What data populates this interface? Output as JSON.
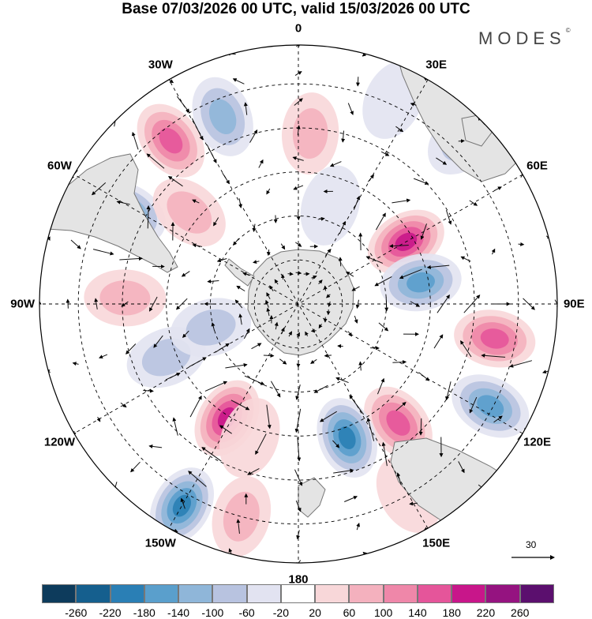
{
  "title": "Base 07/03/2026 00 UTC, valid 15/03/2026 00 UTC",
  "brand": "MODES",
  "brand_mark": "©",
  "longitude_labels": [
    "0",
    "30E",
    "60E",
    "90E",
    "120E",
    "150E",
    "180",
    "150W",
    "120W",
    "90W",
    "60W",
    "30W"
  ],
  "reference_vector": {
    "value": "30"
  },
  "colorbar": {
    "colors": [
      "#0d3b5c",
      "#155f8e",
      "#2a7fb5",
      "#5a9fcc",
      "#8fb6d9",
      "#b8c3e0",
      "#e2e3f1",
      "#ffffff",
      "#f8d7d9",
      "#f4b1be",
      "#ef87a9",
      "#e5559a",
      "#c8168a",
      "#951380",
      "#5b0f6e"
    ],
    "ticks": [
      "-260",
      "-220",
      "-180",
      "-140",
      "-100",
      "-60",
      "-20",
      "20",
      "60",
      "100",
      "140",
      "180",
      "220",
      "260"
    ]
  },
  "anomalies": [
    {
      "lon": -22,
      "r": 0.78,
      "value": -100
    },
    {
      "lon": 4,
      "r": 0.66,
      "value": 60
    },
    {
      "lon": -38,
      "r": 0.8,
      "value": 140
    },
    {
      "lon": 25,
      "r": 0.87,
      "value": -40
    },
    {
      "lon": 45,
      "r": 0.9,
      "value": -60
    },
    {
      "lon": 60,
      "r": 0.48,
      "value": 180
    },
    {
      "lon": 80,
      "r": 0.48,
      "value": -160
    },
    {
      "lon": 100,
      "r": 0.77,
      "value": 160
    },
    {
      "lon": 118,
      "r": 0.84,
      "value": -140
    },
    {
      "lon": 140,
      "r": 0.6,
      "value": 160
    },
    {
      "lon": 160,
      "r": 0.55,
      "value": -200
    },
    {
      "lon": -148,
      "r": 0.52,
      "value": 180
    },
    {
      "lon": -165,
      "r": 0.85,
      "value": 80
    },
    {
      "lon": -150,
      "r": 0.9,
      "value": -180
    },
    {
      "lon": -62,
      "r": 0.75,
      "value": -160
    },
    {
      "lon": -88,
      "r": 0.67,
      "value": 80
    },
    {
      "lon": -50,
      "r": 0.55,
      "value": 60
    },
    {
      "lon": -112,
      "r": 0.55,
      "value": -60
    },
    {
      "lon": 18,
      "r": 0.4,
      "value": -40
    },
    {
      "lon": -105,
      "r": 0.35,
      "value": -60
    },
    {
      "lon": -160,
      "r": 0.55,
      "value": 40
    },
    {
      "lon": 150,
      "r": 0.85,
      "value": 40
    }
  ],
  "colors": {
    "land": "#e4e4e4",
    "coast": "#777777",
    "grid": "#000000"
  }
}
